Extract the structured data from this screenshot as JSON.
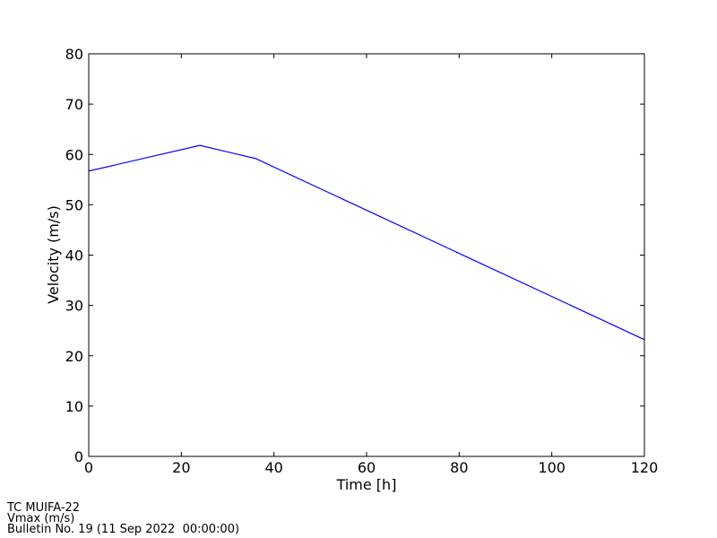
{
  "chart_data": {
    "type": "line",
    "x_label": "Time [h]",
    "y_label": "Velocity (m/s)",
    "x": [
      0,
      24,
      36,
      120
    ],
    "series": [
      {
        "color": "#0000ff",
        "values": [
          56.7,
          61.8,
          59.2,
          23.2
        ]
      }
    ],
    "xlim": [
      0,
      120
    ],
    "xticks": [
      0,
      20,
      40,
      60,
      80,
      100,
      120
    ],
    "ylim": [
      0,
      80
    ],
    "yticks": [
      0,
      10,
      20,
      30,
      40,
      50,
      60,
      70,
      80
    ],
    "grid": false
  },
  "footer": [
    "TC MUIFA-22",
    "Vmax (m/s)",
    "Bulletin No. 19 (11 Sep 2022  00:00:00)"
  ]
}
